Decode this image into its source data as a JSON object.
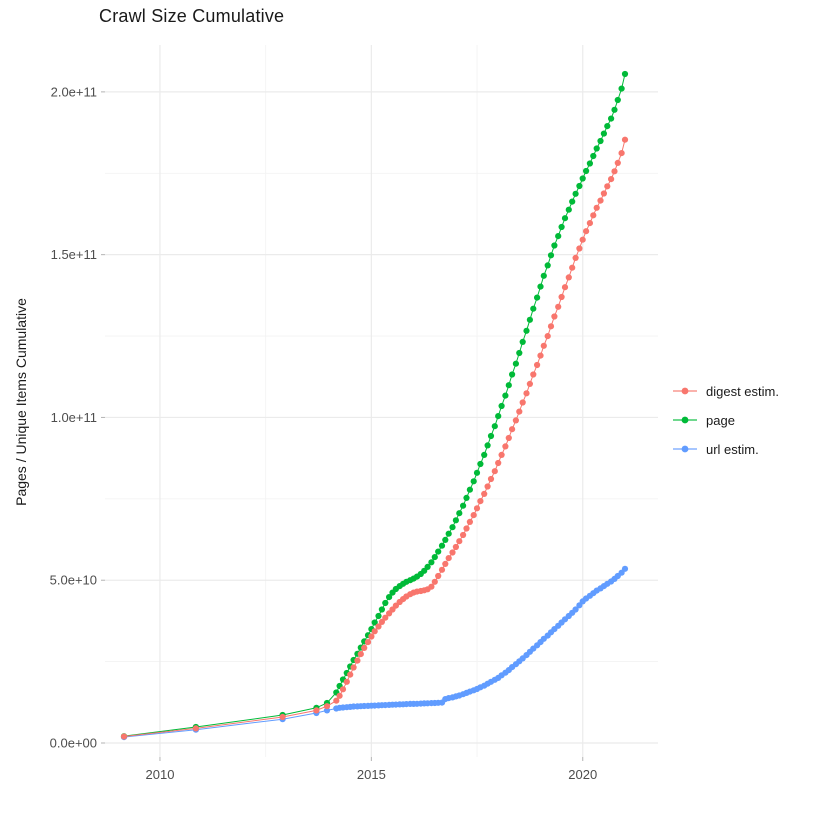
{
  "chart_data": {
    "type": "scatter",
    "title": "Crawl Size Cumulative",
    "xlabel": "",
    "ylabel": "Pages / Unique Items Cumulative",
    "unit": "values are pages x 1e9",
    "legend_position": "right",
    "grid": "on",
    "axes": {
      "xlim": [
        2008.7,
        2021.78
      ],
      "ylim_e9": [
        -4.3,
        214.4
      ],
      "x_major_ticks": [
        {
          "value": 2010,
          "label": "2010"
        },
        {
          "value": 2015,
          "label": "2015"
        },
        {
          "value": 2020,
          "label": "2020"
        }
      ],
      "x_minor_ticks": [
        2012.5,
        2017.5
      ],
      "y_major_ticks": [
        {
          "value_e9": 0,
          "label": "0.0e+00"
        },
        {
          "value_e9": 50,
          "label": "5.0e+10"
        },
        {
          "value_e9": 100,
          "label": "1.0e+11"
        },
        {
          "value_e9": 150,
          "label": "1.5e+11"
        },
        {
          "value_e9": 200,
          "label": "2.0e+11"
        }
      ],
      "y_minor_ticks_e9": [
        25,
        75,
        125,
        175
      ]
    },
    "colors": {
      "digest": "#F8766D",
      "page": "#00BA38",
      "url": "#619CFF",
      "grid_major": "#EBEBEB",
      "grid_minor": "#F3F3F3",
      "tick_mark": "#B3B3B3",
      "tick_text": "#4D4D4D"
    },
    "series": [
      {
        "name": "url estim.",
        "key": "url",
        "color": "#619CFF",
        "points_year_value_e9": [
          [
            2009.15,
            1.8
          ],
          [
            2010.85,
            4.1
          ],
          [
            2012.9,
            7.3
          ],
          [
            2013.7,
            9.2
          ],
          [
            2013.95,
            10.0
          ],
          [
            2014.17,
            10.6
          ],
          [
            2014.25,
            10.8
          ],
          [
            2014.33,
            10.9
          ],
          [
            2014.42,
            11.0
          ],
          [
            2014.5,
            11.1
          ],
          [
            2014.58,
            11.2
          ],
          [
            2014.67,
            11.25
          ],
          [
            2014.75,
            11.3
          ],
          [
            2014.83,
            11.35
          ],
          [
            2014.92,
            11.4
          ],
          [
            2015.0,
            11.45
          ],
          [
            2015.08,
            11.5
          ],
          [
            2015.17,
            11.55
          ],
          [
            2015.25,
            11.6
          ],
          [
            2015.33,
            11.65
          ],
          [
            2015.42,
            11.7
          ],
          [
            2015.5,
            11.75
          ],
          [
            2015.58,
            11.8
          ],
          [
            2015.67,
            11.85
          ],
          [
            2015.75,
            11.9
          ],
          [
            2015.83,
            11.95
          ],
          [
            2015.92,
            12.0
          ],
          [
            2016.0,
            12.0
          ],
          [
            2016.08,
            12.05
          ],
          [
            2016.17,
            12.1
          ],
          [
            2016.25,
            12.15
          ],
          [
            2016.33,
            12.2
          ],
          [
            2016.42,
            12.25
          ],
          [
            2016.5,
            12.3
          ],
          [
            2016.58,
            12.35
          ],
          [
            2016.67,
            12.4
          ],
          [
            2016.75,
            13.5
          ],
          [
            2016.83,
            13.8
          ],
          [
            2016.92,
            14.0
          ],
          [
            2017.0,
            14.3
          ],
          [
            2017.08,
            14.6
          ],
          [
            2017.17,
            15.0
          ],
          [
            2017.25,
            15.4
          ],
          [
            2017.33,
            15.8
          ],
          [
            2017.42,
            16.2
          ],
          [
            2017.5,
            16.6
          ],
          [
            2017.58,
            17.1
          ],
          [
            2017.67,
            17.6
          ],
          [
            2017.75,
            18.2
          ],
          [
            2017.83,
            18.8
          ],
          [
            2017.92,
            19.4
          ],
          [
            2018.0,
            20.0
          ],
          [
            2018.08,
            20.8
          ],
          [
            2018.17,
            21.6
          ],
          [
            2018.25,
            22.4
          ],
          [
            2018.33,
            23.3
          ],
          [
            2018.42,
            24.2
          ],
          [
            2018.5,
            25.1
          ],
          [
            2018.58,
            26.0
          ],
          [
            2018.67,
            27.0
          ],
          [
            2018.75,
            28.0
          ],
          [
            2018.83,
            29.0
          ],
          [
            2018.92,
            30.0
          ],
          [
            2019.0,
            31.0
          ],
          [
            2019.08,
            32.0
          ],
          [
            2019.17,
            33.0
          ],
          [
            2019.25,
            34.0
          ],
          [
            2019.33,
            35.0
          ],
          [
            2019.42,
            36.0
          ],
          [
            2019.5,
            37.0
          ],
          [
            2019.58,
            38.0
          ],
          [
            2019.67,
            39.0
          ],
          [
            2019.75,
            40.0
          ],
          [
            2019.83,
            41.0
          ],
          [
            2019.92,
            42.3
          ],
          [
            2020.0,
            43.5
          ],
          [
            2020.08,
            44.4
          ],
          [
            2020.17,
            45.2
          ],
          [
            2020.25,
            46.0
          ],
          [
            2020.33,
            46.8
          ],
          [
            2020.42,
            47.5
          ],
          [
            2020.5,
            48.2
          ],
          [
            2020.58,
            48.9
          ],
          [
            2020.67,
            49.6
          ],
          [
            2020.75,
            50.4
          ],
          [
            2020.83,
            51.3
          ],
          [
            2020.92,
            52.3
          ],
          [
            2021.0,
            53.5
          ]
        ]
      },
      {
        "name": "page",
        "key": "page",
        "color": "#00BA38",
        "points_year_value_e9": [
          [
            2009.15,
            2.1
          ],
          [
            2010.85,
            4.9
          ],
          [
            2012.9,
            8.6
          ],
          [
            2013.7,
            10.8
          ],
          [
            2013.95,
            12.3
          ],
          [
            2014.17,
            15.5
          ],
          [
            2014.25,
            17.5
          ],
          [
            2014.33,
            19.5
          ],
          [
            2014.42,
            21.5
          ],
          [
            2014.5,
            23.5
          ],
          [
            2014.58,
            25.5
          ],
          [
            2014.67,
            27.4
          ],
          [
            2014.75,
            29.3
          ],
          [
            2014.83,
            31.2
          ],
          [
            2014.92,
            33.1
          ],
          [
            2015.0,
            35.0
          ],
          [
            2015.08,
            37.0
          ],
          [
            2015.17,
            39.0
          ],
          [
            2015.25,
            41.0
          ],
          [
            2015.33,
            43.0
          ],
          [
            2015.42,
            44.8
          ],
          [
            2015.5,
            46.2
          ],
          [
            2015.58,
            47.3
          ],
          [
            2015.67,
            48.2
          ],
          [
            2015.75,
            48.9
          ],
          [
            2015.83,
            49.5
          ],
          [
            2015.92,
            50.0
          ],
          [
            2016.0,
            50.5
          ],
          [
            2016.08,
            51.1
          ],
          [
            2016.17,
            51.9
          ],
          [
            2016.25,
            52.9
          ],
          [
            2016.33,
            54.1
          ],
          [
            2016.42,
            55.5
          ],
          [
            2016.5,
            57.1
          ],
          [
            2016.58,
            58.8
          ],
          [
            2016.67,
            60.6
          ],
          [
            2016.75,
            62.4
          ],
          [
            2016.83,
            64.3
          ],
          [
            2016.92,
            66.3
          ],
          [
            2017.0,
            68.4
          ],
          [
            2017.08,
            70.6
          ],
          [
            2017.17,
            72.9
          ],
          [
            2017.25,
            75.3
          ],
          [
            2017.33,
            77.8
          ],
          [
            2017.42,
            80.4
          ],
          [
            2017.5,
            83.0
          ],
          [
            2017.58,
            85.7
          ],
          [
            2017.67,
            88.5
          ],
          [
            2017.75,
            91.4
          ],
          [
            2017.83,
            94.3
          ],
          [
            2017.92,
            97.3
          ],
          [
            2018.0,
            100.4
          ],
          [
            2018.08,
            103.5
          ],
          [
            2018.17,
            106.7
          ],
          [
            2018.25,
            109.9
          ],
          [
            2018.33,
            113.2
          ],
          [
            2018.42,
            116.5
          ],
          [
            2018.5,
            119.8
          ],
          [
            2018.58,
            123.2
          ],
          [
            2018.67,
            126.6
          ],
          [
            2018.75,
            130.0
          ],
          [
            2018.83,
            133.4
          ],
          [
            2018.92,
            136.8
          ],
          [
            2019.0,
            140.2
          ],
          [
            2019.08,
            143.5
          ],
          [
            2019.17,
            146.7
          ],
          [
            2019.25,
            149.8
          ],
          [
            2019.33,
            152.8
          ],
          [
            2019.42,
            155.7
          ],
          [
            2019.5,
            158.5
          ],
          [
            2019.58,
            161.2
          ],
          [
            2019.67,
            163.8
          ],
          [
            2019.75,
            166.3
          ],
          [
            2019.83,
            168.7
          ],
          [
            2019.92,
            171.1
          ],
          [
            2020.0,
            173.4
          ],
          [
            2020.08,
            175.7
          ],
          [
            2020.17,
            178.0
          ],
          [
            2020.25,
            180.3
          ],
          [
            2020.33,
            182.6
          ],
          [
            2020.42,
            184.9
          ],
          [
            2020.5,
            187.2
          ],
          [
            2020.58,
            189.5
          ],
          [
            2020.67,
            191.8
          ],
          [
            2020.75,
            194.5
          ],
          [
            2020.83,
            197.5
          ],
          [
            2020.92,
            201.0
          ],
          [
            2021.0,
            205.5
          ]
        ]
      },
      {
        "name": "digest estim.",
        "key": "digest",
        "color": "#F8766D",
        "points_year_value_e9": [
          [
            2009.15,
            2.0
          ],
          [
            2010.85,
            4.5
          ],
          [
            2012.9,
            8.0
          ],
          [
            2013.7,
            10.0
          ],
          [
            2013.95,
            11.3
          ],
          [
            2014.17,
            13.0
          ],
          [
            2014.25,
            14.5
          ],
          [
            2014.33,
            16.5
          ],
          [
            2014.42,
            18.8
          ],
          [
            2014.5,
            21.0
          ],
          [
            2014.58,
            23.2
          ],
          [
            2014.67,
            25.3
          ],
          [
            2014.75,
            27.3
          ],
          [
            2014.83,
            29.2
          ],
          [
            2014.92,
            31.0
          ],
          [
            2015.0,
            32.7
          ],
          [
            2015.08,
            34.3
          ],
          [
            2015.17,
            35.8
          ],
          [
            2015.25,
            37.2
          ],
          [
            2015.33,
            38.5
          ],
          [
            2015.42,
            39.8
          ],
          [
            2015.5,
            41.0
          ],
          [
            2015.58,
            42.2
          ],
          [
            2015.67,
            43.3
          ],
          [
            2015.75,
            44.2
          ],
          [
            2015.83,
            45.0
          ],
          [
            2015.92,
            45.7
          ],
          [
            2016.0,
            46.2
          ],
          [
            2016.08,
            46.5
          ],
          [
            2016.17,
            46.7
          ],
          [
            2016.25,
            46.9
          ],
          [
            2016.33,
            47.2
          ],
          [
            2016.42,
            48.0
          ],
          [
            2016.5,
            49.5
          ],
          [
            2016.58,
            51.3
          ],
          [
            2016.67,
            53.2
          ],
          [
            2016.75,
            55.0
          ],
          [
            2016.83,
            56.8
          ],
          [
            2016.92,
            58.5
          ],
          [
            2017.0,
            60.2
          ],
          [
            2017.08,
            62.0
          ],
          [
            2017.17,
            63.9
          ],
          [
            2017.25,
            65.9
          ],
          [
            2017.33,
            67.9
          ],
          [
            2017.42,
            70.0
          ],
          [
            2017.5,
            72.1
          ],
          [
            2017.58,
            74.3
          ],
          [
            2017.67,
            76.5
          ],
          [
            2017.75,
            78.8
          ],
          [
            2017.83,
            81.1
          ],
          [
            2017.92,
            83.5
          ],
          [
            2018.0,
            86.0
          ],
          [
            2018.08,
            88.5
          ],
          [
            2018.17,
            91.1
          ],
          [
            2018.25,
            93.7
          ],
          [
            2018.33,
            96.4
          ],
          [
            2018.42,
            99.1
          ],
          [
            2018.5,
            101.8
          ],
          [
            2018.58,
            104.6
          ],
          [
            2018.67,
            107.4
          ],
          [
            2018.75,
            110.3
          ],
          [
            2018.83,
            113.2
          ],
          [
            2018.92,
            116.1
          ],
          [
            2019.0,
            119.0
          ],
          [
            2019.08,
            122.0
          ],
          [
            2019.17,
            125.0
          ],
          [
            2019.25,
            128.0
          ],
          [
            2019.33,
            131.0
          ],
          [
            2019.42,
            134.0
          ],
          [
            2019.5,
            137.0
          ],
          [
            2019.58,
            140.0
          ],
          [
            2019.67,
            143.0
          ],
          [
            2019.75,
            146.0
          ],
          [
            2019.83,
            149.0
          ],
          [
            2019.92,
            151.9
          ],
          [
            2020.0,
            154.6
          ],
          [
            2020.08,
            157.2
          ],
          [
            2020.17,
            159.7
          ],
          [
            2020.25,
            162.1
          ],
          [
            2020.33,
            164.4
          ],
          [
            2020.42,
            166.6
          ],
          [
            2020.5,
            168.8
          ],
          [
            2020.58,
            171.0
          ],
          [
            2020.67,
            173.2
          ],
          [
            2020.75,
            175.6
          ],
          [
            2020.83,
            178.2
          ],
          [
            2020.92,
            181.2
          ],
          [
            2021.0,
            185.3
          ]
        ]
      }
    ]
  },
  "legend": {
    "items": [
      {
        "label": "digest estim.",
        "color": "#F8766D"
      },
      {
        "label": "page",
        "color": "#00BA38"
      },
      {
        "label": "url estim.",
        "color": "#619CFF"
      }
    ]
  }
}
